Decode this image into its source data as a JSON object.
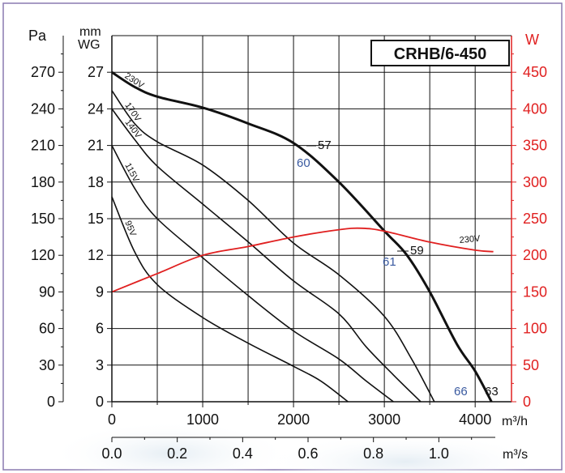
{
  "chart_data": {
    "type": "line",
    "title": "CRHB/6-450",
    "left_axis_pa": {
      "unit": "Pa",
      "ticks": [
        "0",
        "30",
        "60",
        "90",
        "120",
        "150",
        "180",
        "210",
        "240",
        "270"
      ]
    },
    "left_axis_mmwg": {
      "unit_line1": "mm",
      "unit_line2": "WG",
      "ticks": [
        "0",
        "3",
        "6",
        "9",
        "12",
        "15",
        "18",
        "21",
        "24",
        "27"
      ]
    },
    "right_axis_w": {
      "unit": "W",
      "ticks": [
        "0",
        "50",
        "100",
        "150",
        "200",
        "250",
        "300",
        "350",
        "400",
        "450"
      ],
      "color": "#e02020"
    },
    "x_axis_m3h": {
      "unit": "m³/h",
      "ticks": [
        "0",
        "1000",
        "2000",
        "3000",
        "4000"
      ],
      "range": [
        0,
        4400
      ]
    },
    "x_axis_m3s": {
      "unit": "m³/s",
      "ticks": [
        "0.0",
        "0.2",
        "0.4",
        "0.6",
        "0.8",
        "1.0"
      ]
    },
    "ylim_pa": [
      0,
      300
    ],
    "ylim_w": [
      0,
      500
    ],
    "series": [
      {
        "name": "230V",
        "bold": true,
        "points": [
          [
            0,
            270
          ],
          [
            250,
            258
          ],
          [
            500,
            250
          ],
          [
            1000,
            241
          ],
          [
            1500,
            228
          ],
          [
            2000,
            212
          ],
          [
            2500,
            180
          ],
          [
            3000,
            140
          ],
          [
            3250,
            120
          ],
          [
            3500,
            90
          ],
          [
            3800,
            47
          ],
          [
            4000,
            25
          ],
          [
            4180,
            0
          ]
        ]
      },
      {
        "name": "170V",
        "bold": false,
        "points": [
          [
            0,
            255
          ],
          [
            250,
            228
          ],
          [
            500,
            213
          ],
          [
            1000,
            194
          ],
          [
            1500,
            165
          ],
          [
            2000,
            130
          ],
          [
            2500,
            104
          ],
          [
            3000,
            70
          ],
          [
            3300,
            35
          ],
          [
            3550,
            0
          ]
        ]
      },
      {
        "name": "140V",
        "bold": false,
        "points": [
          [
            0,
            240
          ],
          [
            250,
            215
          ],
          [
            500,
            193
          ],
          [
            1000,
            162
          ],
          [
            1500,
            131
          ],
          [
            2000,
            99
          ],
          [
            2500,
            72
          ],
          [
            2800,
            45
          ],
          [
            3100,
            22
          ],
          [
            3400,
            0
          ]
        ]
      },
      {
        "name": "115V",
        "bold": false,
        "points": [
          [
            0,
            210
          ],
          [
            250,
            175
          ],
          [
            500,
            150
          ],
          [
            1000,
            118
          ],
          [
            1500,
            87
          ],
          [
            2000,
            58
          ],
          [
            2500,
            35
          ],
          [
            2800,
            17
          ],
          [
            3100,
            0
          ]
        ]
      },
      {
        "name": "95V",
        "bold": false,
        "points": [
          [
            0,
            168
          ],
          [
            250,
            123
          ],
          [
            500,
            96
          ],
          [
            1000,
            69
          ],
          [
            1500,
            48
          ],
          [
            2000,
            29
          ],
          [
            2300,
            17
          ],
          [
            2600,
            0
          ]
        ]
      }
    ],
    "power_series": {
      "name": "230V",
      "color": "#e02020",
      "points": [
        [
          0,
          150
        ],
        [
          500,
          175
        ],
        [
          1000,
          200
        ],
        [
          1500,
          212
        ],
        [
          2000,
          225
        ],
        [
          2500,
          235
        ],
        [
          2750,
          237
        ],
        [
          3000,
          233
        ],
        [
          3500,
          218
        ],
        [
          4000,
          207
        ],
        [
          4200,
          205
        ]
      ]
    },
    "noise_labels": [
      {
        "text": "57",
        "color": "#111111"
      },
      {
        "text": "60",
        "color": "#3a5aa0"
      },
      {
        "text": "59",
        "color": "#111111"
      },
      {
        "text": "61",
        "color": "#3a5aa0"
      },
      {
        "text": "66",
        "color": "#3a5aa0"
      },
      {
        "text": "63",
        "color": "#111111"
      }
    ]
  }
}
